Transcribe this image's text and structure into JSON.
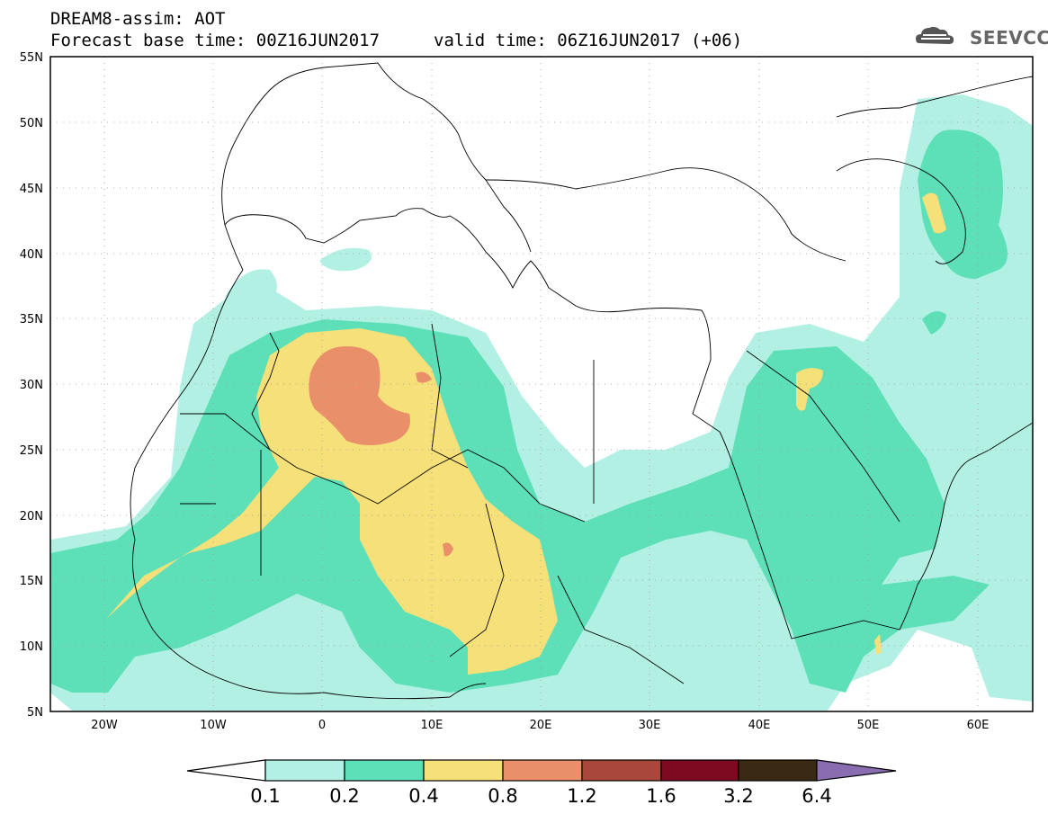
{
  "header": {
    "line1": "DREAM8-assim: AOT",
    "line2_left": "Forecast base time: 00Z16JUN2017",
    "line2_right": "valid time: 06Z16JUN2017 (+06)",
    "logo_text": "SEEVCCC"
  },
  "axes": {
    "lat_labels": [
      "55N",
      "50N",
      "45N",
      "40N",
      "35N",
      "30N",
      "25N",
      "20N",
      "15N",
      "10N",
      "5N"
    ],
    "lon_labels": [
      "20W",
      "10W",
      "0",
      "10E",
      "20E",
      "30E",
      "40E",
      "50E",
      "60E"
    ],
    "lon_range": [
      -25,
      65
    ],
    "lat_range": [
      5,
      55
    ],
    "grid": "dotted"
  },
  "colorbar": {
    "levels": [
      "0.1",
      "0.2",
      "0.4",
      "0.8",
      "1.2",
      "1.6",
      "3.2",
      "6.4"
    ],
    "colors": [
      "#b3f0e4",
      "#5de0b8",
      "#f5e07a",
      "#e9906a",
      "#a9483a",
      "#7e0a22",
      "#3a2a14",
      "#8a6cb0"
    ]
  },
  "map": {
    "coast_color": "#000000",
    "background": "#ffffff"
  }
}
